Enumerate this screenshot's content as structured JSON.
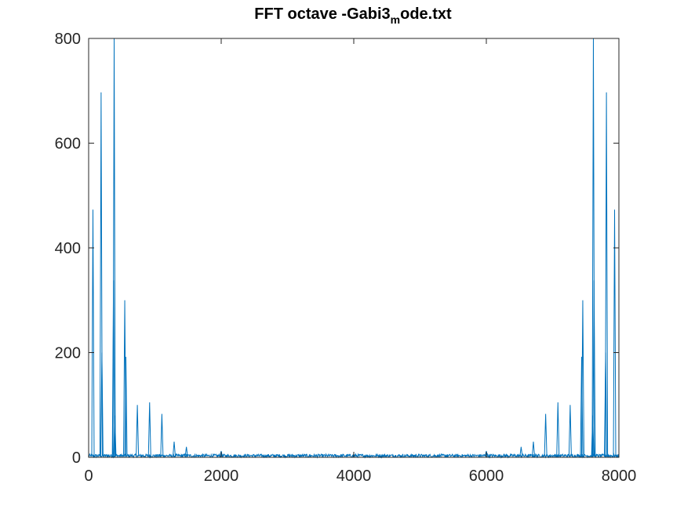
{
  "chart_data": {
    "type": "line",
    "title": {
      "main": "FFT octave -Gabi3",
      "subscript": "m",
      "suffix": "ode.txt"
    },
    "xlabel": "",
    "ylabel": "",
    "xlim": [
      0,
      8000
    ],
    "ylim": [
      0,
      800
    ],
    "xticks": [
      0,
      2000,
      4000,
      6000,
      8000
    ],
    "xtick_labels": [
      "0",
      "2000",
      "4000",
      "6000",
      "8000"
    ],
    "yticks": [
      0,
      200,
      400,
      600,
      800
    ],
    "ytick_labels": [
      "0",
      "200",
      "400",
      "600",
      "800"
    ],
    "grid": false,
    "legend": "none",
    "series": [
      {
        "color": "#0072BD",
        "baseline_noise": [
          0,
          6
        ],
        "peaks": [
          {
            "x": 65,
            "y": 473
          },
          {
            "x": 188,
            "y": 697
          },
          {
            "x": 200,
            "y": 200
          },
          {
            "x": 375,
            "y": 338
          },
          {
            "x": 385,
            "y": 800
          },
          {
            "x": 395,
            "y": 80
          },
          {
            "x": 545,
            "y": 300
          },
          {
            "x": 562,
            "y": 192
          },
          {
            "x": 735,
            "y": 100
          },
          {
            "x": 920,
            "y": 105
          },
          {
            "x": 1105,
            "y": 83
          },
          {
            "x": 1290,
            "y": 30
          },
          {
            "x": 1475,
            "y": 20
          },
          {
            "x": 2000,
            "y": 12
          },
          {
            "x": 6000,
            "y": 12
          },
          {
            "x": 6525,
            "y": 20
          },
          {
            "x": 6710,
            "y": 30
          },
          {
            "x": 6895,
            "y": 83
          },
          {
            "x": 7080,
            "y": 105
          },
          {
            "x": 7265,
            "y": 100
          },
          {
            "x": 7438,
            "y": 192
          },
          {
            "x": 7455,
            "y": 300
          },
          {
            "x": 7605,
            "y": 80
          },
          {
            "x": 7615,
            "y": 800
          },
          {
            "x": 7625,
            "y": 338
          },
          {
            "x": 7800,
            "y": 200
          },
          {
            "x": 7812,
            "y": 697
          },
          {
            "x": 7935,
            "y": 473
          }
        ]
      }
    ]
  }
}
